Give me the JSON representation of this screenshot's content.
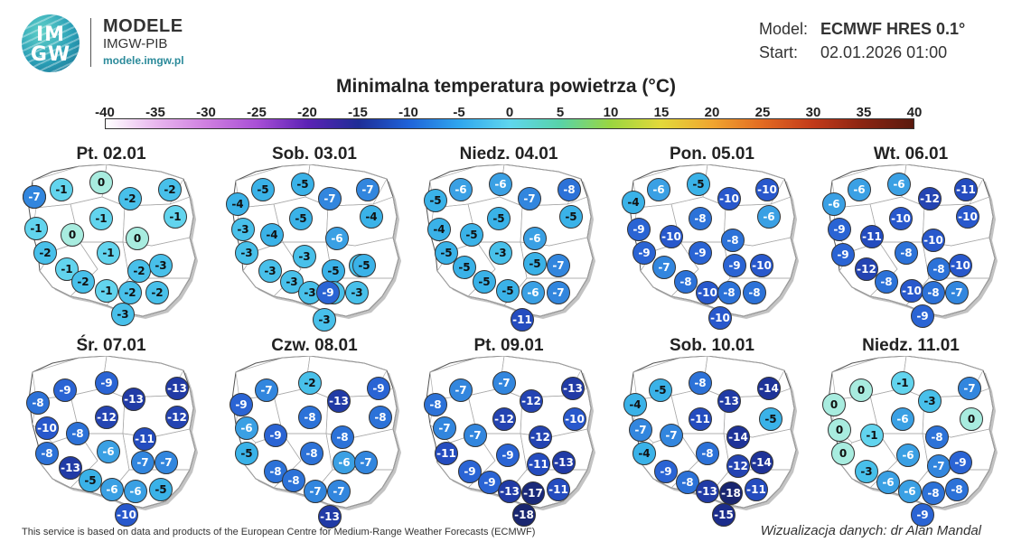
{
  "brand": {
    "logo_text_top": "IM",
    "logo_text_bottom": "GW",
    "title": "MODELE",
    "subtitle": "IMGW-PIB",
    "url": "modele.imgw.pl"
  },
  "model_info": {
    "model_label": "Model:",
    "model_value": "ECMWF HRES 0.1°",
    "start_label": "Start:",
    "start_value": "02.01.2026 01:00"
  },
  "title": "Minimalna temperatura powietrza (°C)",
  "colorbar": {
    "ticks": [
      "-40",
      "-35",
      "-30",
      "-25",
      "-20",
      "-15",
      "-10",
      "-5",
      "0",
      "5",
      "10",
      "15",
      "20",
      "25",
      "30",
      "35",
      "40"
    ],
    "stops": [
      "#ffffff",
      "#e8b6ee",
      "#cf7fe0",
      "#a84fd6",
      "#5b22b5",
      "#1f2d96",
      "#1f63d9",
      "#2fa6ee",
      "#5fd6ee",
      "#58d3a8",
      "#9ad640",
      "#e3d93a",
      "#f0a630",
      "#e36b22",
      "#c23a1a",
      "#8a2412",
      "#5a1a0e"
    ]
  },
  "panels": [
    {
      "day": "Pt. 02.01",
      "values": [
        -2,
        -1,
        0,
        -2,
        -2,
        -1,
        -1,
        -1,
        0,
        0,
        -2,
        -1,
        -1,
        -2,
        -3,
        -2,
        -1,
        -2,
        -2,
        -3,
        -7
      ]
    },
    {
      "day": "Sob. 03.01",
      "values": [
        -4,
        -5,
        -5,
        -7,
        -7,
        -4,
        -3,
        -4,
        -5,
        -6,
        -3,
        -3,
        -3,
        -5,
        -2,
        -3,
        -3,
        -2,
        -3,
        -3,
        -5,
        -9
      ]
    },
    {
      "day": "Niedz. 04.01",
      "values": [
        -5,
        -6,
        -6,
        -7,
        -8,
        -5,
        -4,
        -5,
        -5,
        -6,
        -5,
        -5,
        -3,
        -5,
        -7,
        -5,
        -5,
        -6,
        -7,
        -11
      ]
    },
    {
      "day": "Pon. 05.01",
      "values": [
        -4,
        -6,
        -5,
        -10,
        -10,
        -6,
        -9,
        -10,
        -8,
        -8,
        -9,
        -7,
        -9,
        -9,
        -10,
        -8,
        -10,
        -8,
        -8,
        -10
      ]
    },
    {
      "day": "Wt. 06.01",
      "values": [
        -6,
        -6,
        -6,
        -12,
        -11,
        -10,
        -9,
        -11,
        -10,
        -10,
        -9,
        -12,
        -8,
        -8,
        -10,
        -8,
        -10,
        -8,
        -7,
        -9
      ]
    },
    {
      "day": "Śr. 07.01",
      "values": [
        -8,
        -9,
        -9,
        -13,
        -13,
        -12,
        -10,
        -8,
        -12,
        -11,
        -8,
        -13,
        -6,
        -7,
        -7,
        -5,
        -6,
        -6,
        -5,
        -10
      ]
    },
    {
      "day": "Czw. 08.01",
      "values": [
        -9,
        -7,
        -2,
        -13,
        -9,
        -8,
        -6,
        -9,
        -8,
        -8,
        -5,
        -8,
        -8,
        -6,
        -7,
        -8,
        -7,
        -7,
        -13
      ]
    },
    {
      "day": "Pt. 09.01",
      "values": [
        -8,
        -7,
        -7,
        -12,
        -13,
        -10,
        -7,
        -7,
        -12,
        -12,
        -11,
        -9,
        -9,
        -11,
        -13,
        -9,
        -13,
        -17,
        -11,
        -18
      ]
    },
    {
      "day": "Sob. 10.01",
      "values": [
        -4,
        -5,
        -8,
        -13,
        -14,
        -5,
        -7,
        -7,
        -11,
        -14,
        -4,
        -9,
        -8,
        -12,
        -14,
        -8,
        -13,
        -18,
        -11,
        -15
      ]
    },
    {
      "day": "Niedz. 11.01",
      "values": [
        0,
        0,
        -1,
        -3,
        -7,
        0,
        0,
        -1,
        -6,
        -8,
        0,
        -3,
        -6,
        -7,
        -9,
        -6,
        -6,
        -8,
        -8,
        -9
      ]
    }
  ],
  "footer": {
    "left": "This service is based on data and products of the European Centre for Medium-Range Weather Forecasts (ECMWF)",
    "right": "Wizualizacja danych: dr Alan Mandal"
  }
}
